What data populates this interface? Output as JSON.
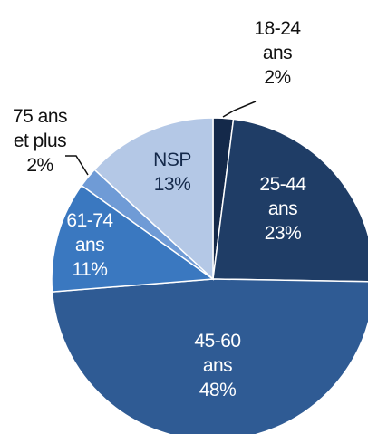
{
  "chart_data": {
    "type": "pie",
    "categories": [
      "18-24\nans",
      "25-44\nans",
      "45-60\nans",
      "61-74\nans",
      "75 ans\net plus",
      "NSP"
    ],
    "values": [
      2,
      23,
      48,
      11,
      2,
      13
    ],
    "value_labels": [
      "2%",
      "23%",
      "48%",
      "11%",
      "2%",
      "13%"
    ],
    "colors": [
      "#14294a",
      "#1f3d66",
      "#2f5b94",
      "#3a78c0",
      "#6f9bd6",
      "#b4c8e6"
    ]
  }
}
